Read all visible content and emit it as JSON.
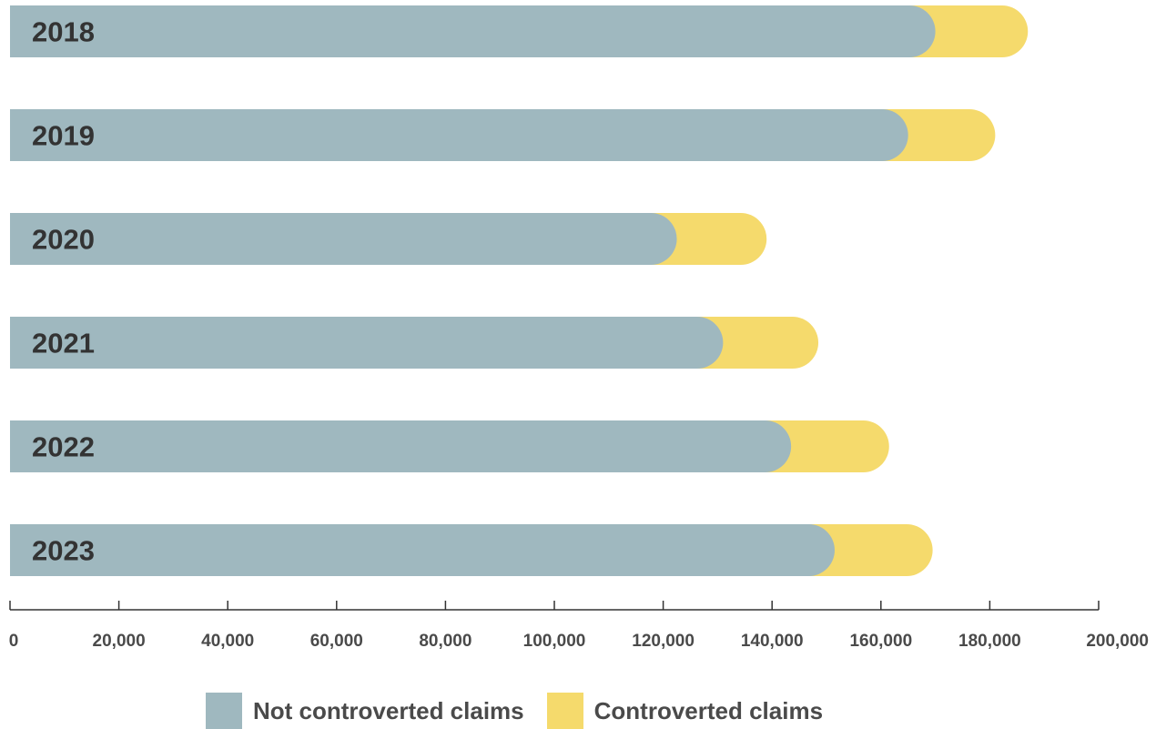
{
  "chart_data": {
    "type": "bar",
    "orientation": "horizontal",
    "stacked": true,
    "categories": [
      "2018",
      "2019",
      "2020",
      "2021",
      "2022",
      "2023"
    ],
    "series": [
      {
        "name": "Not controverted claims",
        "color": "#9fb8bf",
        "values": [
          170000,
          165000,
          122500,
          131000,
          143500,
          151500
        ]
      },
      {
        "name": "Controverted claims",
        "color": "#f5da6c",
        "values": [
          17000,
          16000,
          16500,
          17500,
          18000,
          18000
        ]
      }
    ],
    "xlim": [
      0,
      200000
    ],
    "xticks": [
      "0",
      "20,000",
      "40,000",
      "60,000",
      "80,000",
      "100,000",
      "120,000",
      "140,000",
      "160,000",
      "180,000",
      "200,000"
    ],
    "grid": false,
    "legend_position": "bottom-center"
  }
}
